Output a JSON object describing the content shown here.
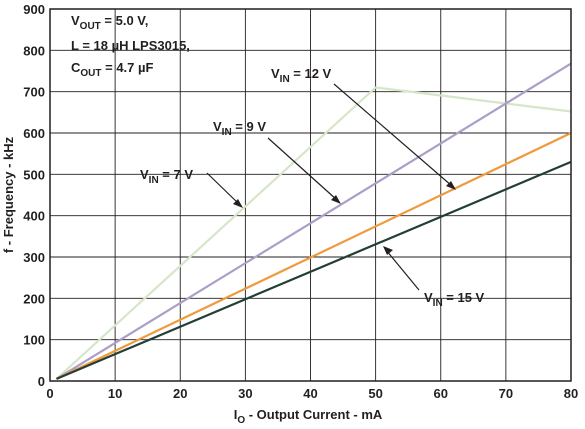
{
  "chart_data": {
    "type": "line",
    "xlabel_main": "I",
    "xlabel_sub": "O",
    "xlabel_rest": " - Output Current - mA",
    "ylabel": "f - Frequency - kHz",
    "xlim": [
      0,
      80
    ],
    "ylim": [
      0,
      900
    ],
    "x_ticks": [
      0,
      10,
      20,
      30,
      40,
      50,
      60,
      70,
      80
    ],
    "y_ticks": [
      0,
      100,
      200,
      300,
      400,
      500,
      600,
      700,
      800,
      900
    ],
    "grid": true,
    "conditions": [
      {
        "main": "V",
        "sub": "OUT",
        "rest": " = 5.0 V,"
      },
      {
        "main": "L = 18 ",
        "greek": "µ",
        "rest": "H LPS3015,"
      },
      {
        "main": "C",
        "sub": "OUT",
        "rest": " = 4.7 ",
        "greek": "µ",
        "rest2": "F"
      }
    ],
    "series": [
      {
        "name": "VIN = 7 V",
        "label_main": "V",
        "label_sub": "IN",
        "label_rest": " = 7 V",
        "color": "#d6e6c9",
        "x": [
          1,
          50,
          80
        ],
        "y": [
          5,
          710,
          652
        ]
      },
      {
        "name": "VIN = 9 V",
        "label_main": "V",
        "label_sub": "IN",
        "label_rest": " = 9 V",
        "color": "#ab9ec9",
        "x": [
          1,
          80
        ],
        "y": [
          5,
          768
        ]
      },
      {
        "name": "VIN = 12 V",
        "label_main": "V",
        "label_sub": "IN",
        "label_rest": " = 12 V",
        "color": "#ef9a3c",
        "x": [
          1,
          80
        ],
        "y": [
          5,
          600
        ]
      },
      {
        "name": "VIN = 15 V",
        "label_main": "V",
        "label_sub": "IN",
        "label_rest": " = 15 V",
        "color": "#233f35",
        "x": [
          1,
          80
        ],
        "y": [
          5,
          530
        ]
      }
    ]
  }
}
